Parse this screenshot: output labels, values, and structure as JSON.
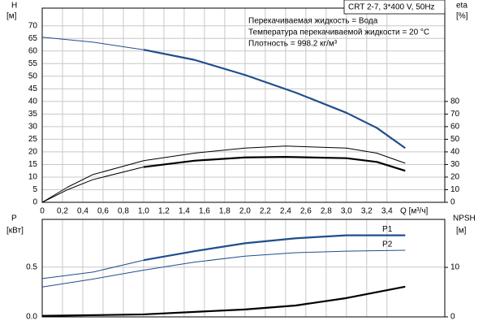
{
  "chart_data": [
    {
      "type": "line",
      "title": "CRT 2-7, 3*400 V, 50Hz",
      "notes": [
        "Перекачиваемая жидкость = Вода",
        "Температура перекачиваемой жидкости = 20 °C",
        "Плотность = 998.2 кг/м³"
      ],
      "y_label": "H",
      "y_unit": "[м]",
      "y2_label": "eta",
      "y2_unit": "[%]",
      "x_label": "Q [м³/ч]",
      "xlim": [
        0,
        3.97
      ],
      "xticks": [
        0,
        {
          "value": 0.2,
          "label": "0,2"
        },
        {
          "value": 0.4,
          "label": "0,4"
        },
        {
          "value": 0.6,
          "label": "0,6"
        },
        {
          "value": 0.8,
          "label": "0,8"
        },
        {
          "value": 1.0,
          "label": "1,0"
        },
        {
          "value": 1.2,
          "label": "1,2"
        },
        {
          "value": 1.4,
          "label": "1,4"
        },
        {
          "value": 1.6,
          "label": "1,6"
        },
        {
          "value": 1.8,
          "label": "1,8"
        },
        {
          "value": 2.0,
          "label": "2,0"
        },
        {
          "value": 2.2,
          "label": "2,2"
        },
        {
          "value": 2.4,
          "label": "2,4"
        },
        {
          "value": 2.6,
          "label": "2,6"
        },
        {
          "value": 2.8,
          "label": "2,8"
        },
        {
          "value": 3.0,
          "label": "3,0"
        },
        {
          "value": 3.2,
          "label": "3,2"
        },
        {
          "value": 3.4,
          "label": "3,4"
        }
      ],
      "ylim": [
        0,
        77
      ],
      "yticks": [
        0,
        5,
        10,
        15,
        20,
        25,
        30,
        35,
        40,
        45,
        50,
        55,
        60,
        65,
        70
      ],
      "y2lim": [
        0,
        154
      ],
      "y2ticks": [
        0,
        10,
        20,
        30,
        40,
        50,
        60,
        70,
        80
      ],
      "grid": true,
      "series": [
        {
          "color": "#1f4e8c",
          "width": 1,
          "x": [
            0,
            0.5,
            1.0
          ],
          "values": [
            65.5,
            63.5,
            60.5
          ]
        },
        {
          "color": "#1f4e8c",
          "width": 2.2,
          "x": [
            1.0,
            1.5,
            2.0,
            2.5,
            3.0,
            3.3,
            3.58
          ],
          "values": [
            60.5,
            56.5,
            50.5,
            43.5,
            35.5,
            29.5,
            21.5
          ]
        },
        {
          "color": "#000000",
          "width": 1,
          "axis": "y2",
          "x": [
            0,
            0.25,
            0.5,
            1.0,
            1.5,
            2.0,
            2.4,
            3.0,
            3.3,
            3.58
          ],
          "values": [
            0,
            12,
            22,
            33,
            39,
            43,
            44.6,
            43,
            39,
            31
          ]
        },
        {
          "color": "#000000",
          "width": 1,
          "axis": "y2",
          "x": [
            0,
            0.25,
            0.5,
            1.0
          ],
          "values": [
            0,
            10,
            18,
            28
          ]
        },
        {
          "color": "#000000",
          "width": 2.2,
          "axis": "y2",
          "x": [
            1.0,
            1.5,
            2.0,
            2.4,
            3.0,
            3.3,
            3.58
          ],
          "values": [
            28,
            33,
            35.6,
            36,
            35,
            32,
            25
          ]
        }
      ]
    },
    {
      "type": "line",
      "y_label": "P",
      "y_unit": "[кВт]",
      "y2_label": "NPSH",
      "y2_unit": "[м]",
      "xlim": [
        0,
        3.97
      ],
      "ylim": [
        0,
        0.98
      ],
      "yticks": [
        {
          "value": 0,
          "label": "0.0"
        },
        0.5
      ],
      "y2lim": [
        0,
        19.7
      ],
      "y2ticks": [
        0,
        10
      ],
      "grid": true,
      "series": [
        {
          "color": "#1f4e8c",
          "width": 1,
          "x": [
            0,
            0.5,
            1.0
          ],
          "values": [
            0.385,
            0.45,
            0.57
          ]
        },
        {
          "label": "P1",
          "color": "#1f4e8c",
          "width": 2.2,
          "x": [
            1.0,
            1.5,
            2.0,
            2.5,
            3.0,
            3.58
          ],
          "values": [
            0.57,
            0.66,
            0.74,
            0.79,
            0.82,
            0.82
          ]
        },
        {
          "label": "P2",
          "color": "#1f4e8c",
          "width": 1,
          "x": [
            0,
            0.5,
            1.0,
            1.5,
            2.0,
            2.5,
            3.0,
            3.58
          ],
          "values": [
            0.3,
            0.38,
            0.47,
            0.55,
            0.61,
            0.645,
            0.66,
            0.67
          ]
        },
        {
          "color": "#000000",
          "width": 2.2,
          "axis": "y2",
          "x": [
            0,
            1.0,
            2.0,
            2.5,
            3.0,
            3.58
          ],
          "values": [
            0.2,
            0.5,
            1.5,
            2.3,
            3.8,
            6.1
          ]
        }
      ]
    }
  ]
}
